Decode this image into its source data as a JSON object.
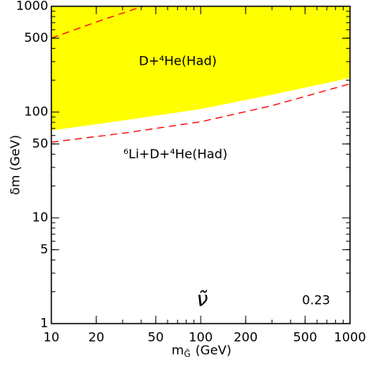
{
  "chart_data": {
    "type": "line",
    "log_x": true,
    "log_y": true,
    "minor_ticks": true,
    "x_label": {
      "main": "m",
      "subscript": "G̃",
      "unit": "(GeV)"
    },
    "y_label": "δm (GeV)",
    "xlim": [
      10,
      1000
    ],
    "ylim": [
      1,
      1000
    ],
    "xticks": [
      10,
      20,
      50,
      100,
      200,
      500,
      1000
    ],
    "yticks": [
      1,
      5,
      10,
      50,
      100,
      500,
      1000
    ],
    "series": [
      {
        "style": "region",
        "color": "#ffff00",
        "x": [
          10,
          30,
          100,
          300,
          1000
        ],
        "values": [
          67,
          83,
          107,
          146,
          210
        ]
      },
      {
        "style": "dashed",
        "color": "#ff0000",
        "x": [
          10,
          30,
          100,
          300,
          1000
        ],
        "values": [
          52,
          63,
          81,
          115,
          185
        ]
      },
      {
        "style": "dashed",
        "color": "#ff0000",
        "x": [
          10,
          20,
          41
        ],
        "values": [
          500,
          710,
          1000
        ]
      }
    ],
    "annotations": [
      {
        "text": "D+⁴He(Had)",
        "color": "#000000"
      },
      {
        "text": "⁶Li+D+⁴He(Had)",
        "color": "#ff0000"
      },
      {
        "text": "ν̃",
        "color": "#000000"
      },
      {
        "text": "0.23",
        "color": "#000000"
      }
    ]
  }
}
